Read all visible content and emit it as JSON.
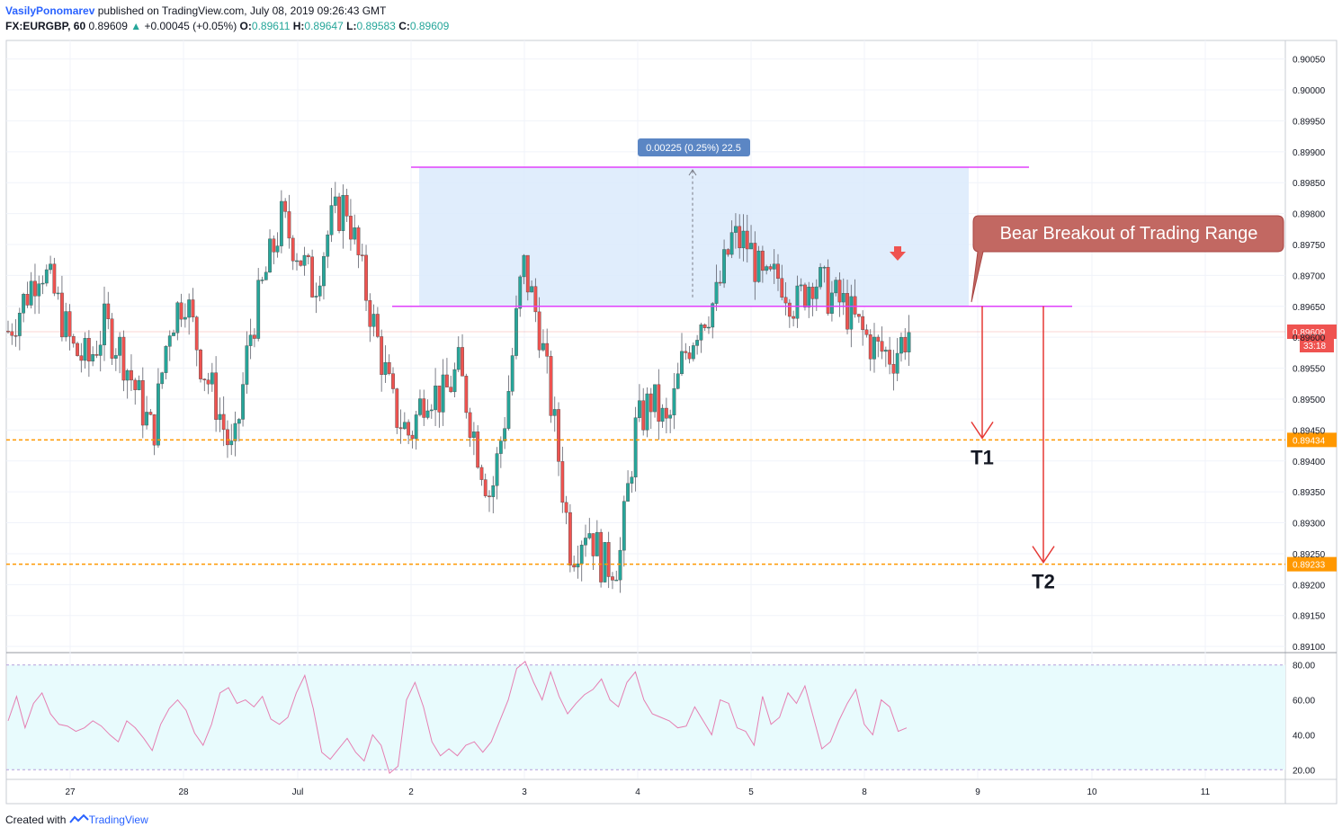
{
  "header": {
    "author": "VasilyPonomarev",
    "published": "published on TradingView.com, July 08, 2019 09:26:43 GMT",
    "symbol": "FX:EURGBP, 60",
    "last": "0.89609",
    "change": "+0.00045 (+0.05%)",
    "o_label": "O:",
    "o_val": "0.89611",
    "h_label": "H:",
    "h_val": "0.89647",
    "l_label": "L:",
    "l_val": "0.89583",
    "c_label": "C:",
    "c_val": "0.89609"
  },
  "footer": {
    "created_with": "Created with",
    "brand": "TradingView"
  },
  "colors": {
    "up": "#26a69a",
    "down": "#ef5350",
    "magenta": "#e040fb",
    "orange": "#ff9800",
    "red_arrow": "#e53935",
    "box": "#dbeafc",
    "rsi": "#e57fb2",
    "rsi_band": "#e8fbfd"
  },
  "chart_data": [
    {
      "type": "candlestick",
      "symbol": "FX:EURGBP",
      "interval": "60",
      "ylim": [
        0.8909,
        0.9008
      ],
      "y_ticks": [
        "0.90050",
        "0.90000",
        "0.89950",
        "0.89900",
        "0.89850",
        "0.89800",
        "0.89750",
        "0.89700",
        "0.89650",
        "0.89600",
        "0.89550",
        "0.89500",
        "0.89450",
        "0.89400",
        "0.89350",
        "0.89300",
        "0.89250",
        "0.89200",
        "0.89150",
        "0.89100"
      ],
      "x_ticks": [
        "27",
        "28",
        "Jul",
        "2",
        "3",
        "4",
        "5",
        "8",
        "9",
        "10",
        "11"
      ],
      "close_path": [
        0.8961,
        0.8966,
        0.8972,
        0.8966,
        0.8958,
        0.8956,
        0.8962,
        0.8958,
        0.8951,
        0.8944,
        0.8962,
        0.8967,
        0.8956,
        0.8949,
        0.894,
        0.896,
        0.897,
        0.8979,
        0.8974,
        0.8968,
        0.8978,
        0.8982,
        0.897,
        0.8959,
        0.8948,
        0.8944,
        0.8952,
        0.895,
        0.8955,
        0.8944,
        0.8934,
        0.8949,
        0.8972,
        0.8962,
        0.8945,
        0.8925,
        0.893,
        0.8923,
        0.8924,
        0.8945,
        0.895,
        0.8945,
        0.8957,
        0.8963,
        0.8966,
        0.8976,
        0.8975,
        0.8968,
        0.897,
        0.8965,
        0.897,
        0.8967,
        0.8965,
        0.8961,
        0.8958,
        0.8957,
        0.8961
      ],
      "last_price": "0.89609",
      "countdown": "33:18",
      "range_box": {
        "top": 0.89875,
        "bottom": 0.8965
      },
      "range_label": "0.00225 (0.25%) 22.5",
      "annotation": "Bear Breakout of Trading Range",
      "targets": [
        {
          "name": "T1",
          "price": "0.89434"
        },
        {
          "name": "T2",
          "price": "0.89233"
        }
      ]
    },
    {
      "type": "line",
      "indicator": "RSI",
      "ylim": [
        15,
        85
      ],
      "y_ticks": [
        "80.00",
        "60.00",
        "40.00",
        "20.00"
      ],
      "bands": [
        80,
        20
      ],
      "values": [
        48,
        62,
        44,
        58,
        64,
        52,
        46,
        45,
        42,
        44,
        48,
        45,
        40,
        36,
        48,
        44,
        38,
        31,
        46,
        55,
        60,
        54,
        41,
        34,
        46,
        64,
        67,
        58,
        60,
        56,
        62,
        49,
        46,
        50,
        64,
        74,
        55,
        30,
        26,
        32,
        38,
        30,
        25,
        40,
        34,
        18,
        22,
        60,
        70,
        56,
        36,
        28,
        32,
        28,
        34,
        36,
        30,
        36,
        48,
        60,
        78,
        82,
        70,
        60,
        76,
        62,
        52,
        58,
        63,
        66,
        72,
        60,
        56,
        70,
        76,
        60,
        52,
        50,
        48,
        44,
        45,
        56,
        48,
        40,
        60,
        58,
        44,
        42,
        34,
        62,
        46,
        50,
        64,
        58,
        68,
        50,
        32,
        36,
        48,
        58,
        66,
        46,
        40,
        60,
        56,
        42,
        44
      ]
    }
  ]
}
